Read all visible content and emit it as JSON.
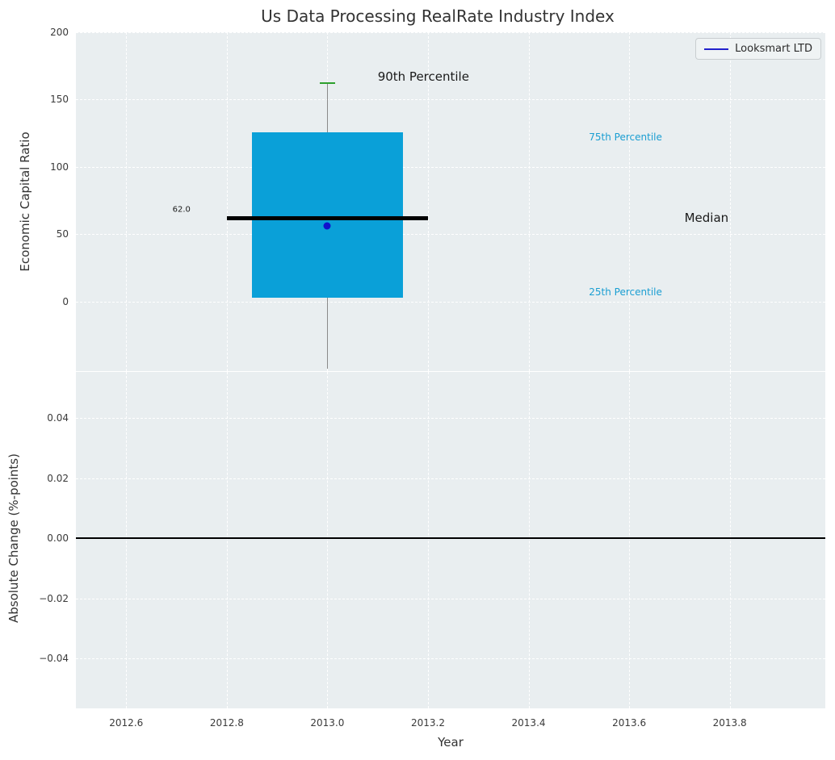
{
  "title": "Us Data Processing RealRate Industry Index",
  "legend": {
    "label": "Looksmart LTD"
  },
  "colors": {
    "axes_bg": "#e9eef0",
    "grid": "#ffffff",
    "text": "#3a3a3a",
    "box": "#0aa0d8",
    "cap": "#2ca02c",
    "whisker": "#8a8a8a",
    "median": "#000000",
    "marker": "#1111cc",
    "legend_line": "#2222cc",
    "percentile_label": "#1a9ed2",
    "zero_line": "#000000"
  },
  "chart_data": {
    "type": "box",
    "title": "Us Data Processing RealRate Industry Index",
    "xlabel": "Year",
    "xlim": [
      2012.5,
      2013.99
    ],
    "xticks": [
      2012.6,
      2012.8,
      2013.0,
      2013.2,
      2013.4,
      2013.6,
      2013.8
    ],
    "grid": true,
    "legend_position": "upper right",
    "top": {
      "ylabel": "Economic Capital Ratio",
      "ylim": [
        -51.5,
        200
      ],
      "yticks": [
        0,
        50,
        100,
        150,
        200
      ],
      "box": {
        "x": 2013.0,
        "box_width": 0.3,
        "median_span": 0.4,
        "cap_width": 0.03,
        "p10": -50,
        "q1": 3,
        "median": 62,
        "q3": 126,
        "p90": 162,
        "company": {
          "name": "Looksmart LTD",
          "value": 56
        }
      },
      "annotations": [
        {
          "text": "90th Percentile",
          "x": 2013.1,
          "y": 167,
          "size": 15,
          "color": "#1a1a1a",
          "align": "left"
        },
        {
          "text": "75th Percentile",
          "x": 2013.52,
          "y": 122,
          "size": 12,
          "color": "#1a9ed2",
          "align": "left"
        },
        {
          "text": "Median",
          "x": 2013.71,
          "y": 62,
          "size": 15,
          "color": "#1a1a1a",
          "align": "left"
        },
        {
          "text": "25th Percentile",
          "x": 2013.52,
          "y": 7,
          "size": 12,
          "color": "#1a9ed2",
          "align": "left"
        },
        {
          "text": "62.0",
          "x": 2012.71,
          "y": 68,
          "size": 10,
          "color": "#1a1a1a",
          "align": "center"
        }
      ]
    },
    "bottom": {
      "ylabel": "Absolute Change (%-points)",
      "ylim": [
        -0.0566,
        0.0553
      ],
      "yticks": [
        0.04,
        0.02,
        0.0,
        -0.02,
        -0.04
      ],
      "zero_line": 0.0
    }
  }
}
